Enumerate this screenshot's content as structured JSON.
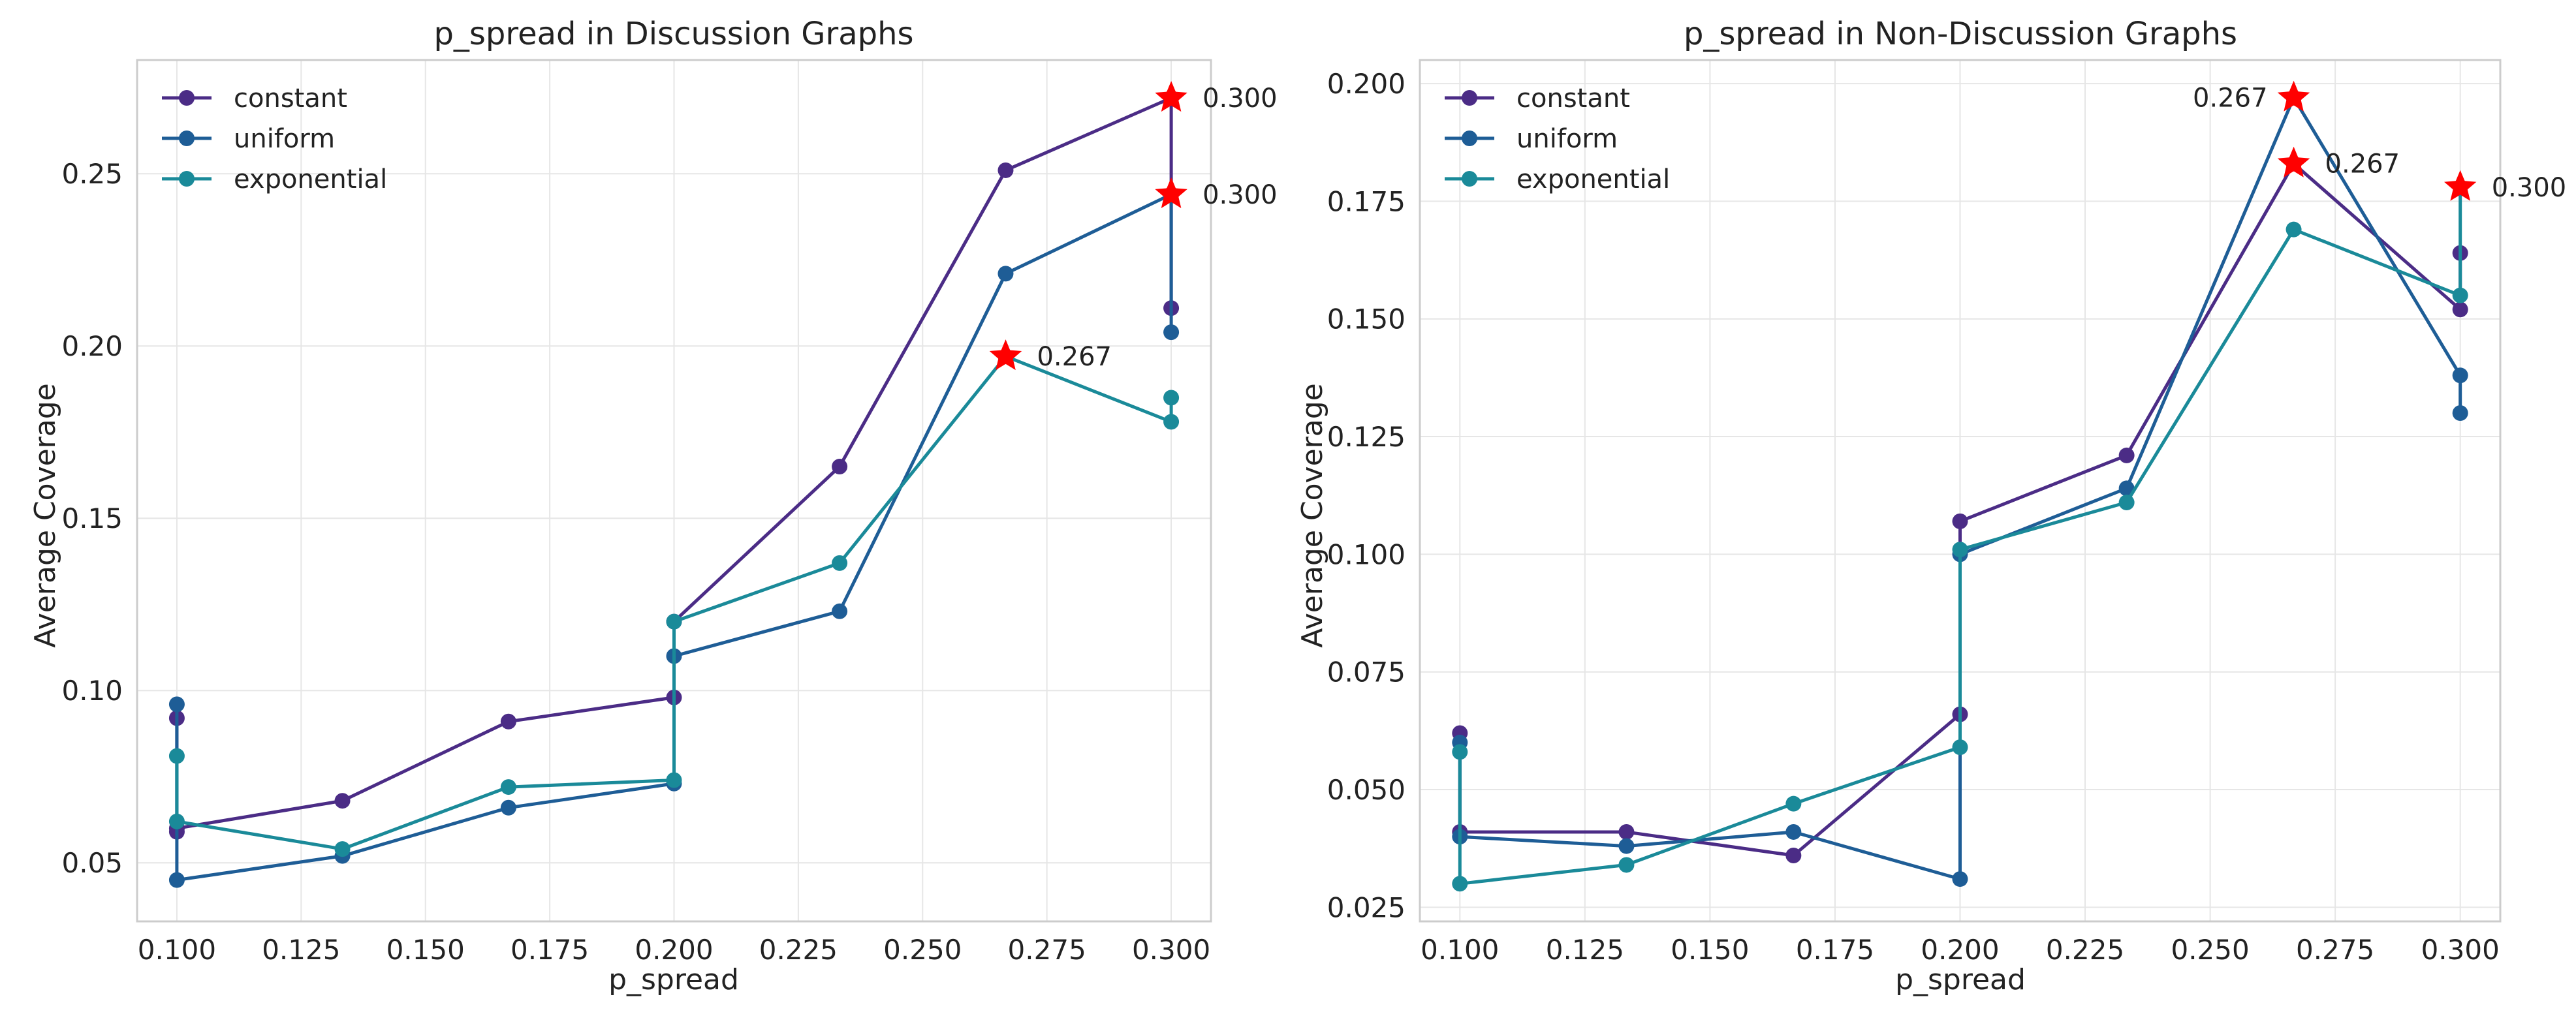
{
  "colors": {
    "constant": "#4b2c86",
    "uniform": "#1e5d96",
    "exponential": "#1a8a99",
    "star": "#ff0000",
    "grid": "#e6e6e6",
    "frame": "#cccccc"
  },
  "chart_data": [
    {
      "type": "line",
      "title": "p_spread in Discussion Graphs",
      "xlabel": "p_spread",
      "ylabel": "Average Coverage",
      "xlim": [
        0.092,
        0.308
      ],
      "ylim": [
        0.033,
        0.283
      ],
      "xticks": [
        0.1,
        0.125,
        0.15,
        0.175,
        0.2,
        0.225,
        0.25,
        0.275,
        0.3
      ],
      "xtick_labels": [
        "0.100",
        "0.125",
        "0.150",
        "0.175",
        "0.200",
        "0.225",
        "0.250",
        "0.275",
        "0.300"
      ],
      "yticks": [
        0.05,
        0.1,
        0.15,
        0.2,
        0.25
      ],
      "ytick_labels": [
        "0.05",
        "0.10",
        "0.15",
        "0.20",
        "0.25"
      ],
      "legend_position": "top-left",
      "series": [
        {
          "name": "constant",
          "color_key": "constant",
          "x": [
            0.1,
            0.1,
            0.1,
            0.1333,
            0.1667,
            0.2,
            0.2,
            0.2333,
            0.2667,
            0.3,
            0.3,
            0.3
          ],
          "y": [
            0.092,
            0.059,
            0.06,
            0.068,
            0.091,
            0.098,
            0.12,
            0.165,
            0.251,
            0.272,
            0.244,
            0.211
          ]
        },
        {
          "name": "uniform",
          "color_key": "uniform",
          "x": [
            0.1,
            0.1,
            0.1333,
            0.1667,
            0.2,
            0.2,
            0.2333,
            0.2667,
            0.3,
            0.3
          ],
          "y": [
            0.096,
            0.045,
            0.052,
            0.066,
            0.073,
            0.11,
            0.123,
            0.221,
            0.244,
            0.204
          ]
        },
        {
          "name": "exponential",
          "color_key": "exponential",
          "x": [
            0.1,
            0.1,
            0.1333,
            0.1667,
            0.2,
            0.2,
            0.2333,
            0.2667,
            0.3,
            0.3
          ],
          "y": [
            0.081,
            0.062,
            0.054,
            0.072,
            0.074,
            0.12,
            0.137,
            0.197,
            0.178,
            0.185
          ]
        }
      ],
      "stars": [
        {
          "x": 0.3,
          "y": 0.272,
          "label": "0.300",
          "anchor": "right"
        },
        {
          "x": 0.3,
          "y": 0.244,
          "label": "0.300",
          "anchor": "right"
        },
        {
          "x": 0.2667,
          "y": 0.197,
          "label": "0.267",
          "anchor": "right"
        }
      ]
    },
    {
      "type": "line",
      "title": "p_spread in Non-Discussion Graphs",
      "xlabel": "p_spread",
      "ylabel": "Average Coverage",
      "xlim": [
        0.092,
        0.308
      ],
      "ylim": [
        0.022,
        0.205
      ],
      "xticks": [
        0.1,
        0.125,
        0.15,
        0.175,
        0.2,
        0.225,
        0.25,
        0.275,
        0.3
      ],
      "xtick_labels": [
        "0.100",
        "0.125",
        "0.150",
        "0.175",
        "0.200",
        "0.225",
        "0.250",
        "0.275",
        "0.300"
      ],
      "yticks": [
        0.025,
        0.05,
        0.075,
        0.1,
        0.125,
        0.15,
        0.175,
        0.2
      ],
      "ytick_labels": [
        "0.025",
        "0.050",
        "0.075",
        "0.100",
        "0.125",
        "0.150",
        "0.175",
        "0.200"
      ],
      "legend_position": "top-left",
      "series": [
        {
          "name": "constant",
          "color_key": "constant",
          "x": [
            0.1,
            0.1,
            0.1333,
            0.1667,
            0.2,
            0.2,
            0.2333,
            0.2667,
            0.3,
            0.3
          ],
          "y": [
            0.062,
            0.041,
            0.041,
            0.036,
            0.066,
            0.107,
            0.121,
            0.183,
            0.152,
            0.164
          ]
        },
        {
          "name": "uniform",
          "color_key": "uniform",
          "x": [
            0.1,
            0.1,
            0.1333,
            0.1667,
            0.2,
            0.2,
            0.2333,
            0.2667,
            0.3,
            0.3
          ],
          "y": [
            0.06,
            0.04,
            0.038,
            0.041,
            0.031,
            0.1,
            0.114,
            0.197,
            0.138,
            0.13
          ]
        },
        {
          "name": "exponential",
          "color_key": "exponential",
          "x": [
            0.1,
            0.1,
            0.1333,
            0.1667,
            0.2,
            0.2,
            0.2333,
            0.2667,
            0.3,
            0.3
          ],
          "y": [
            0.058,
            0.03,
            0.034,
            0.047,
            0.059,
            0.101,
            0.111,
            0.169,
            0.155,
            0.178
          ]
        }
      ],
      "stars": [
        {
          "x": 0.2667,
          "y": 0.197,
          "label": "0.267",
          "anchor": "left"
        },
        {
          "x": 0.2667,
          "y": 0.183,
          "label": "0.267",
          "anchor": "right"
        },
        {
          "x": 0.3,
          "y": 0.178,
          "label": "0.300",
          "anchor": "right"
        }
      ]
    }
  ]
}
